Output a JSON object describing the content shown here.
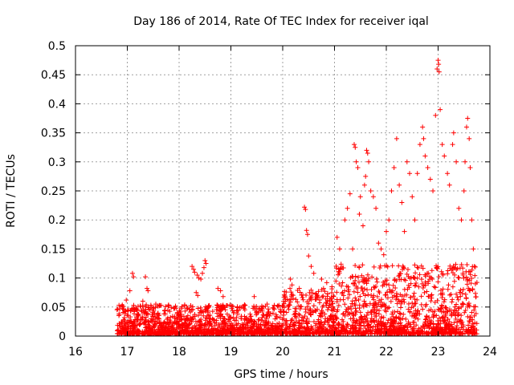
{
  "chart_data": {
    "type": "scatter",
    "title": "Day 186 of 2014, Rate Of TEC Index for receiver iqal",
    "xlabel": "GPS time / hours",
    "ylabel": "ROTI / TECUs",
    "xlim": [
      16,
      24
    ],
    "ylim": [
      0,
      0.5
    ],
    "xticks": [
      16,
      17,
      18,
      19,
      20,
      21,
      22,
      23,
      24
    ],
    "xtick_labels": [
      "16",
      "17",
      "18",
      "19",
      "20",
      "21",
      "22",
      "23",
      "24"
    ],
    "yticks": [
      0,
      0.05,
      0.1,
      0.15,
      0.2,
      0.25,
      0.3,
      0.35,
      0.4,
      0.45,
      0.5
    ],
    "ytick_labels": [
      "0",
      "0.05",
      "0.1",
      "0.15",
      "0.2",
      "0.25",
      "0.3",
      "0.35",
      "0.4",
      "0.45",
      "0.5"
    ],
    "grid": true,
    "marker": "plus",
    "marker_color": "#ff0000",
    "x_data_range": [
      16.8,
      23.75
    ],
    "series": [
      {
        "name": "ROTI",
        "color": "#ff0000",
        "points": [
          [
            17.1,
            0.108
          ],
          [
            17.12,
            0.102
          ],
          [
            17.35,
            0.102
          ],
          [
            17.38,
            0.082
          ],
          [
            17.4,
            0.078
          ],
          [
            17.05,
            0.078
          ],
          [
            16.98,
            0.062
          ],
          [
            17.3,
            0.06
          ],
          [
            17.55,
            0.055
          ],
          [
            17.8,
            0.052
          ],
          [
            18.05,
            0.048
          ],
          [
            18.25,
            0.12
          ],
          [
            18.28,
            0.115
          ],
          [
            18.3,
            0.11
          ],
          [
            18.35,
            0.105
          ],
          [
            18.38,
            0.1
          ],
          [
            18.42,
            0.098
          ],
          [
            18.45,
            0.108
          ],
          [
            18.5,
            0.13
          ],
          [
            18.52,
            0.125
          ],
          [
            18.48,
            0.118
          ],
          [
            18.33,
            0.075
          ],
          [
            18.36,
            0.07
          ],
          [
            18.75,
            0.082
          ],
          [
            18.8,
            0.078
          ],
          [
            18.85,
            0.068
          ],
          [
            19.05,
            0.04
          ],
          [
            19.45,
            0.068
          ],
          [
            19.7,
            0.055
          ],
          [
            19.9,
            0.052
          ],
          [
            20.05,
            0.06
          ],
          [
            20.15,
            0.098
          ],
          [
            20.18,
            0.088
          ],
          [
            20.2,
            0.065
          ],
          [
            20.42,
            0.222
          ],
          [
            20.44,
            0.218
          ],
          [
            20.46,
            0.182
          ],
          [
            20.48,
            0.175
          ],
          [
            20.5,
            0.138
          ],
          [
            20.55,
            0.12
          ],
          [
            20.6,
            0.108
          ],
          [
            20.75,
            0.098
          ],
          [
            20.85,
            0.092
          ],
          [
            20.95,
            0.085
          ],
          [
            21.05,
            0.17
          ],
          [
            21.1,
            0.15
          ],
          [
            21.2,
            0.2
          ],
          [
            21.25,
            0.22
          ],
          [
            21.3,
            0.245
          ],
          [
            21.35,
            0.15
          ],
          [
            21.38,
            0.33
          ],
          [
            21.4,
            0.325
          ],
          [
            21.42,
            0.3
          ],
          [
            21.45,
            0.29
          ],
          [
            21.48,
            0.21
          ],
          [
            21.5,
            0.24
          ],
          [
            21.55,
            0.19
          ],
          [
            21.58,
            0.26
          ],
          [
            21.6,
            0.275
          ],
          [
            21.62,
            0.32
          ],
          [
            21.64,
            0.315
          ],
          [
            21.66,
            0.3
          ],
          [
            21.7,
            0.25
          ],
          [
            21.75,
            0.24
          ],
          [
            21.8,
            0.22
          ],
          [
            21.85,
            0.16
          ],
          [
            21.9,
            0.15
          ],
          [
            21.95,
            0.14
          ],
          [
            22.0,
            0.18
          ],
          [
            22.05,
            0.2
          ],
          [
            22.1,
            0.25
          ],
          [
            22.15,
            0.29
          ],
          [
            22.2,
            0.34
          ],
          [
            22.25,
            0.26
          ],
          [
            22.3,
            0.23
          ],
          [
            22.35,
            0.18
          ],
          [
            22.4,
            0.3
          ],
          [
            22.45,
            0.28
          ],
          [
            22.5,
            0.24
          ],
          [
            22.55,
            0.2
          ],
          [
            22.6,
            0.28
          ],
          [
            22.65,
            0.33
          ],
          [
            22.7,
            0.36
          ],
          [
            22.72,
            0.34
          ],
          [
            22.75,
            0.31
          ],
          [
            22.8,
            0.29
          ],
          [
            22.85,
            0.27
          ],
          [
            22.9,
            0.25
          ],
          [
            22.95,
            0.38
          ],
          [
            22.98,
            0.46
          ],
          [
            23.0,
            0.475
          ],
          [
            23.01,
            0.468
          ],
          [
            23.02,
            0.455
          ],
          [
            23.04,
            0.39
          ],
          [
            23.08,
            0.33
          ],
          [
            23.12,
            0.31
          ],
          [
            23.18,
            0.28
          ],
          [
            23.22,
            0.26
          ],
          [
            23.28,
            0.33
          ],
          [
            23.3,
            0.35
          ],
          [
            23.35,
            0.3
          ],
          [
            23.4,
            0.22
          ],
          [
            23.45,
            0.2
          ],
          [
            23.5,
            0.25
          ],
          [
            23.52,
            0.3
          ],
          [
            23.55,
            0.36
          ],
          [
            23.57,
            0.375
          ],
          [
            23.6,
            0.34
          ],
          [
            23.62,
            0.29
          ],
          [
            23.65,
            0.2
          ],
          [
            23.68,
            0.15
          ],
          [
            23.7,
            0.12
          ],
          [
            23.72,
            0.09
          ]
        ]
      }
    ],
    "dense_band": {
      "note": "Dense baseline cloud of ROTI values between 16.8 and 23.75 h",
      "segments": [
        {
          "x": [
            16.8,
            20.0
          ],
          "y_floor": 0.0,
          "y_top": 0.05
        },
        {
          "x": [
            20.0,
            21.0
          ],
          "y_floor": 0.0,
          "y_top": 0.08
        },
        {
          "x": [
            21.0,
            23.75
          ],
          "y_floor": 0.0,
          "y_top": 0.12
        }
      ],
      "seed": 186
    }
  }
}
